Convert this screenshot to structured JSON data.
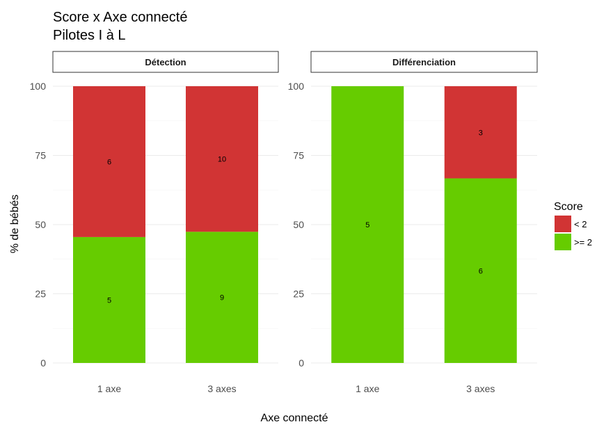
{
  "chart_data": {
    "type": "bar",
    "stacked": true,
    "title": "Score x Axe connecté",
    "subtitle": "Pilotes I à L",
    "xlabel": "Axe connecté",
    "ylabel": "% de bébés",
    "ylim": [
      0,
      100
    ],
    "yticks": [
      0,
      25,
      50,
      75,
      100
    ],
    "grid": true,
    "legend": {
      "title": "Score",
      "position": "right",
      "entries": [
        {
          "label": "< 2",
          "color": "#d13434"
        },
        {
          "label": ">= 2",
          "color": "#66cc00"
        }
      ]
    },
    "panels": [
      {
        "name": "Détection",
        "categories": [
          "1 axe",
          "3 axes"
        ],
        "series": [
          {
            "name": "< 2",
            "values": [
              54.5,
              52.6
            ],
            "labels": [
              "6",
              "10"
            ],
            "color": "#d13434"
          },
          {
            "name": ">= 2",
            "values": [
              45.5,
              47.4
            ],
            "labels": [
              "5",
              "9"
            ],
            "color": "#66cc00"
          }
        ]
      },
      {
        "name": "Différenciation",
        "categories": [
          "1 axe",
          "3 axes"
        ],
        "series": [
          {
            "name": "< 2",
            "values": [
              0,
              33.3
            ],
            "labels": [
              "",
              "3"
            ],
            "color": "#d13434"
          },
          {
            "name": ">= 2",
            "values": [
              100,
              66.7
            ],
            "labels": [
              "5",
              "6"
            ],
            "color": "#66cc00"
          }
        ]
      }
    ]
  }
}
